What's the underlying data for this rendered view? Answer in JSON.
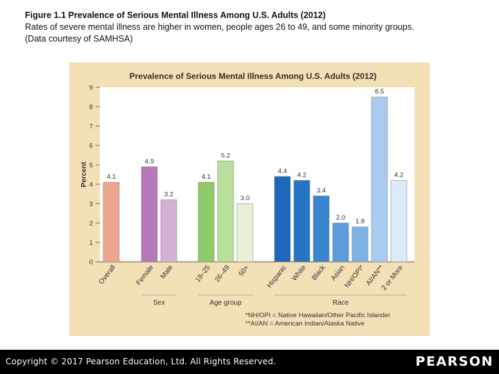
{
  "caption": {
    "title": "Figure 1.1   Prevalence of Serious Mental Illness Among U.S. Adults (2012)",
    "line2": "Rates of severe mental illness are higher in women, people ages 26 to 49, and some minority groups.",
    "line3": "(Data courtesy of SAMHSA)"
  },
  "chart_data": {
    "type": "bar",
    "title": "Prevalence of Serious Mental Illness Among U.S. Adults (2012)",
    "xlabel": "",
    "ylabel": "Percent",
    "ylim": [
      0,
      9
    ],
    "yticks": [
      0,
      1,
      2,
      3,
      4,
      5,
      6,
      7,
      8,
      9
    ],
    "grid": false,
    "categories": [
      "Overall",
      "Female",
      "Male",
      "18–25",
      "26–49",
      "50+",
      "Hispanic",
      "White",
      "Black",
      "Asian",
      "NH/OPI*",
      "AI/AN**",
      "2 or More"
    ],
    "values": [
      4.1,
      4.9,
      3.2,
      4.1,
      5.2,
      3.0,
      4.4,
      4.2,
      3.4,
      2.0,
      1.8,
      8.5,
      4.2
    ],
    "value_labels": [
      "4.1",
      "4.9",
      "3.2",
      "4.1",
      "5.2",
      "3.0",
      "4.4",
      "4.2",
      "3.4",
      "2.0",
      "1.8",
      "8.5",
      "4.2"
    ],
    "colors": [
      "#eea58d",
      "#b578b8",
      "#d4b2d5",
      "#8ec96a",
      "#b9e09a",
      "#e5f2d6",
      "#1f67b8",
      "#2674c4",
      "#3a85d0",
      "#5b9ddb",
      "#7db2e5",
      "#a9cbf0",
      "#dbe9f8"
    ],
    "groups": [
      {
        "label": "Sex",
        "members": [
          "Female",
          "Male"
        ]
      },
      {
        "label": "Age group",
        "members": [
          "18–25",
          "26–49",
          "50+"
        ]
      },
      {
        "label": "Race",
        "members": [
          "Hispanic",
          "White",
          "Black",
          "Asian",
          "NH/OPI*",
          "AI/AN**",
          "2 or More"
        ]
      }
    ],
    "footnotes": [
      "*NH/OPI = Native Hawaiian/Other Pacific Islander",
      "**AI/AN = American Indian/Alaska Native"
    ]
  },
  "footer": {
    "copyright": "Copyright © 2017 Pearson Education, Ltd. All Rights Reserved.",
    "logo": "PEARSON"
  }
}
